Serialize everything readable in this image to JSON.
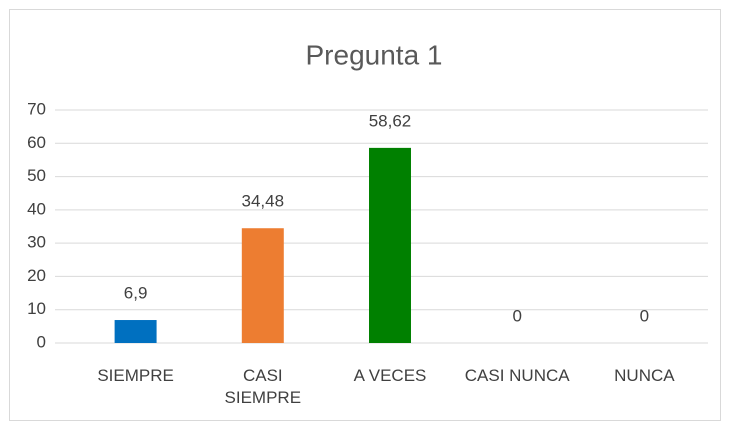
{
  "chart_data": {
    "type": "bar",
    "title": "Pregunta 1",
    "categories": [
      "SIEMPRE",
      "CASI SIEMPRE",
      "A VECES",
      "CASI NUNCA",
      "NUNCA"
    ],
    "values": [
      6.9,
      34.48,
      58.62,
      0,
      0
    ],
    "value_labels": [
      "6,9",
      "34,48",
      "58,62",
      "0",
      "0"
    ],
    "colors": [
      "#0070c0",
      "#ed7d31",
      "#008000",
      "#ffc000",
      "#5b9bd5"
    ],
    "ylim": [
      0,
      70
    ],
    "yticks": [
      0,
      10,
      20,
      30,
      40,
      50,
      60,
      70
    ],
    "grid": true
  }
}
